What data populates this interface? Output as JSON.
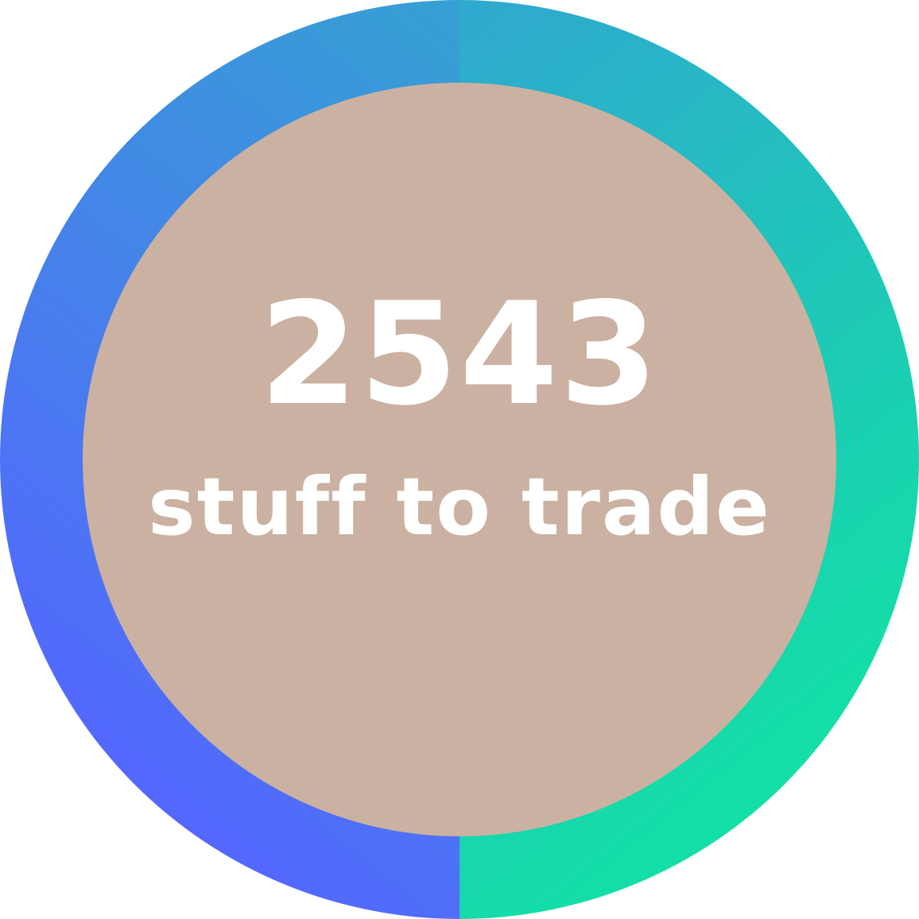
{
  "stat": {
    "value": "2543",
    "label": "stuff to trade"
  },
  "colors": {
    "inner_fill": "#cbb1a1",
    "text": "#ffffff",
    "left_gradient_top": "#35a1d3",
    "left_gradient_bottom": "#5466ff",
    "right_gradient_top": "#2fa8d0",
    "right_gradient_bottom": "#12e1a5"
  }
}
